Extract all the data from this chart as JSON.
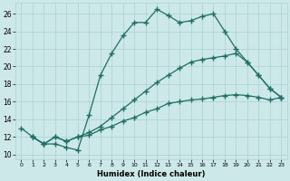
{
  "xlabel": "Humidex (Indice chaleur)",
  "ylabel": "",
  "background_color": "#cce8e8",
  "grid_color": "#aad0d0",
  "line_color": "#1e6e65",
  "xlim": [
    -0.5,
    23.5
  ],
  "ylim": [
    9.5,
    27.2
  ],
  "xticks": [
    0,
    1,
    2,
    3,
    4,
    5,
    6,
    7,
    8,
    9,
    10,
    11,
    12,
    13,
    14,
    15,
    16,
    17,
    18,
    19,
    20,
    21,
    22,
    23
  ],
  "yticks": [
    10,
    12,
    14,
    16,
    18,
    20,
    22,
    24,
    26
  ],
  "curve1_x": [
    0,
    1,
    2,
    3,
    4,
    5,
    6,
    7,
    8,
    9,
    10,
    11,
    12,
    13,
    14,
    15,
    16,
    17,
    18,
    19,
    20,
    21,
    22,
    23
  ],
  "curve1_y": [
    13,
    12,
    11.2,
    11.2,
    10.8,
    10.5,
    14.5,
    19,
    21.5,
    23.5,
    25,
    25,
    26.5,
    25.8,
    25,
    25.2,
    25.7,
    26,
    24,
    22,
    20.5,
    19,
    17.5,
    16.5
  ],
  "curve2_x": [
    1,
    2,
    3,
    4,
    5,
    6,
    7,
    8,
    9,
    10,
    11,
    12,
    13,
    14,
    15,
    16,
    17,
    18,
    19,
    20,
    21,
    22,
    23
  ],
  "curve2_y": [
    12,
    11.2,
    12,
    11.5,
    12,
    12.5,
    13.2,
    14.2,
    15.2,
    16.2,
    17.2,
    18.2,
    19,
    19.8,
    20.5,
    20.8,
    21,
    21.2,
    21.5,
    20.5,
    19,
    17.5,
    16.5
  ],
  "curve3_x": [
    1,
    2,
    3,
    4,
    5,
    6,
    7,
    8,
    9,
    10,
    11,
    12,
    13,
    14,
    15,
    16,
    17,
    18,
    19,
    20,
    21,
    22,
    23
  ],
  "curve3_y": [
    12,
    11.2,
    12,
    11.5,
    12,
    12.2,
    12.8,
    13.2,
    13.8,
    14.2,
    14.8,
    15.2,
    15.8,
    16,
    16.2,
    16.3,
    16.5,
    16.7,
    16.8,
    16.7,
    16.5,
    16.2,
    16.5
  ]
}
